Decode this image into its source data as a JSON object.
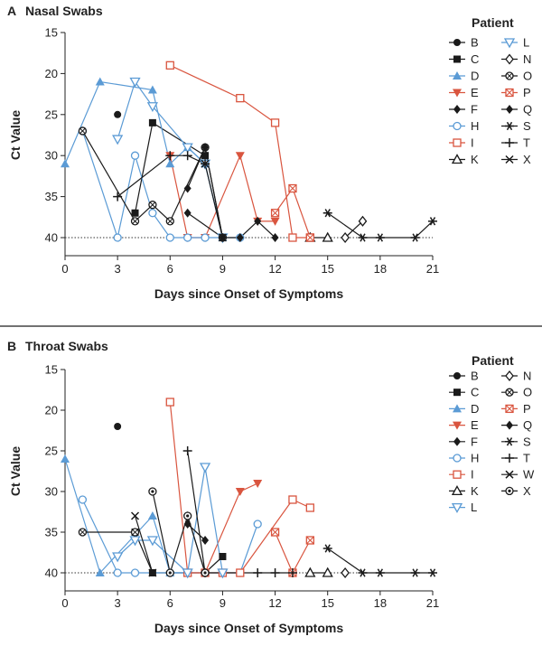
{
  "colors": {
    "black": "#1a1a1a",
    "blue": "#5b9bd5",
    "red": "#d9553f",
    "separator": "#444444"
  },
  "chart_data": [
    {
      "type": "line",
      "panel_letter": "A",
      "title": "Nasal Swabs",
      "xlabel": "Days since Onset of Symptoms",
      "ylabel": "Ct Value",
      "xlim": [
        0,
        21
      ],
      "ylim": [
        15,
        42
      ],
      "y_inverted": true,
      "x_ticks": [
        "0",
        "3",
        "6",
        "9",
        "12",
        "15",
        "18",
        "21"
      ],
      "y_ticks": [
        "15",
        "20",
        "25",
        "30",
        "35",
        "40"
      ],
      "detection_limit": 40,
      "legend_title": "Patient",
      "legend_placement": "right",
      "series": [
        {
          "name": "B",
          "color": "#1a1a1a",
          "marker": "circle-filled",
          "points": [
            [
              3,
              25
            ]
          ]
        },
        {
          "name": "C",
          "color": "#1a1a1a",
          "marker": "square-filled",
          "points": [
            [
              4,
              37
            ],
            [
              5,
              26
            ],
            [
              8,
              30
            ]
          ]
        },
        {
          "name": "D",
          "color": "#5b9bd5",
          "marker": "triangle-up-filled",
          "points": [
            [
              0,
              31
            ],
            [
              2,
              21
            ],
            [
              5,
              22
            ],
            [
              6,
              31
            ],
            [
              7,
              29
            ],
            [
              8,
              31
            ],
            [
              9,
              40
            ]
          ]
        },
        {
          "name": "E",
          "color": "#d9553f",
          "marker": "triangle-down-filled",
          "points": [
            [
              6,
              30
            ],
            [
              7,
              40
            ],
            [
              8,
              40
            ],
            [
              10,
              30
            ],
            [
              11,
              38
            ],
            [
              12,
              38
            ]
          ]
        },
        {
          "name": "F",
          "color": "#1a1a1a",
          "marker": "diamond-filled",
          "points": [
            [
              7,
              37
            ],
            [
              9,
              40
            ]
          ]
        },
        {
          "name": "H",
          "color": "#5b9bd5",
          "marker": "circle-open",
          "points": [
            [
              1,
              27
            ],
            [
              3,
              40
            ],
            [
              4,
              30
            ],
            [
              5,
              37
            ],
            [
              6,
              40
            ],
            [
              7,
              40
            ],
            [
              8,
              40
            ],
            [
              10,
              40
            ]
          ]
        },
        {
          "name": "I",
          "color": "#d9553f",
          "marker": "square-open",
          "points": [
            [
              6,
              19
            ],
            [
              10,
              23
            ],
            [
              12,
              26
            ],
            [
              13,
              40
            ],
            [
              14,
              40
            ]
          ]
        },
        {
          "name": "K",
          "color": "#1a1a1a",
          "marker": "triangle-up-open",
          "points": [
            [
              14,
              40
            ],
            [
              15,
              40
            ]
          ]
        },
        {
          "name": "L",
          "color": "#5b9bd5",
          "marker": "triangle-down-open",
          "points": [
            [
              3,
              28
            ],
            [
              4,
              21
            ],
            [
              5,
              24
            ],
            [
              7,
              29
            ],
            [
              8,
              31
            ],
            [
              9,
              40
            ]
          ]
        },
        {
          "name": "N",
          "color": "#1a1a1a",
          "marker": "diamond-open",
          "points": [
            [
              16,
              40
            ],
            [
              17,
              38
            ]
          ]
        },
        {
          "name": "O",
          "color": "#1a1a1a",
          "marker": "circle-x",
          "points": [
            [
              1,
              27
            ],
            [
              4,
              38
            ],
            [
              5,
              36
            ],
            [
              6,
              38
            ],
            [
              8,
              29
            ],
            [
              9,
              40
            ]
          ]
        },
        {
          "name": "P",
          "color": "#d9553f",
          "marker": "square-x",
          "points": [
            [
              12,
              37
            ],
            [
              13,
              34
            ],
            [
              14,
              40
            ]
          ]
        },
        {
          "name": "Q",
          "color": "#1a1a1a",
          "marker": "diamond-filled",
          "points": [
            [
              7,
              34
            ],
            [
              8,
              29
            ],
            [
              9,
              40
            ],
            [
              10,
              40
            ],
            [
              11,
              38
            ],
            [
              12,
              40
            ]
          ]
        },
        {
          "name": "S",
          "color": "#1a1a1a",
          "marker": "asterisk",
          "points": [
            [
              15,
              37
            ],
            [
              17,
              40
            ],
            [
              18,
              40
            ],
            [
              20,
              40
            ],
            [
              21,
              38
            ]
          ]
        },
        {
          "name": "T",
          "color": "#1a1a1a",
          "marker": "plus",
          "points": [
            [
              3,
              35
            ],
            [
              6,
              30
            ],
            [
              7,
              30
            ],
            [
              8,
              31
            ]
          ]
        },
        {
          "name": "X",
          "color": "#1a1a1a",
          "marker": "x",
          "points": [
            [
              8,
              31
            ],
            [
              9,
              40
            ]
          ]
        }
      ]
    },
    {
      "type": "line",
      "panel_letter": "B",
      "title": "Throat Swabs",
      "xlabel": "Days since Onset of Symptoms",
      "ylabel": "Ct Value",
      "xlim": [
        0,
        21
      ],
      "ylim": [
        15,
        42
      ],
      "y_inverted": true,
      "x_ticks": [
        "0",
        "3",
        "6",
        "9",
        "12",
        "15",
        "18",
        "21"
      ],
      "y_ticks": [
        "15",
        "20",
        "25",
        "30",
        "35",
        "40"
      ],
      "detection_limit": 40,
      "legend_title": "Patient",
      "legend_placement": "right",
      "series": [
        {
          "name": "B",
          "color": "#1a1a1a",
          "marker": "circle-filled",
          "points": [
            [
              3,
              22
            ]
          ]
        },
        {
          "name": "C",
          "color": "#1a1a1a",
          "marker": "square-filled",
          "points": [
            [
              4,
              35
            ],
            [
              5,
              40
            ],
            [
              8,
              40
            ],
            [
              9,
              38
            ]
          ]
        },
        {
          "name": "D",
          "color": "#5b9bd5",
          "marker": "triangle-up-filled",
          "points": [
            [
              0,
              26
            ],
            [
              2,
              40
            ],
            [
              5,
              33
            ],
            [
              6,
              40
            ],
            [
              7,
              40
            ]
          ]
        },
        {
          "name": "E",
          "color": "#d9553f",
          "marker": "triangle-down-filled",
          "points": [
            [
              8,
              40
            ],
            [
              10,
              30
            ],
            [
              11,
              29
            ]
          ]
        },
        {
          "name": "F",
          "color": "#1a1a1a",
          "marker": "diamond-filled",
          "points": [
            [
              7,
              33
            ],
            [
              8,
              40
            ]
          ]
        },
        {
          "name": "H",
          "color": "#5b9bd5",
          "marker": "circle-open",
          "points": [
            [
              1,
              31
            ],
            [
              3,
              40
            ],
            [
              4,
              40
            ],
            [
              6,
              40
            ],
            [
              7,
              40
            ],
            [
              8,
              40
            ],
            [
              10,
              40
            ],
            [
              11,
              34
            ]
          ]
        },
        {
          "name": "I",
          "color": "#d9553f",
          "marker": "square-open",
          "points": [
            [
              6,
              19
            ],
            [
              7,
              40
            ],
            [
              8,
              40
            ],
            [
              9,
              40
            ],
            [
              10,
              40
            ],
            [
              13,
              31
            ],
            [
              14,
              32
            ]
          ]
        },
        {
          "name": "K",
          "color": "#1a1a1a",
          "marker": "triangle-up-open",
          "points": [
            [
              14,
              40
            ],
            [
              15,
              40
            ]
          ]
        },
        {
          "name": "L",
          "color": "#5b9bd5",
          "marker": "triangle-down-open",
          "points": [
            [
              3,
              38
            ],
            [
              4,
              36
            ],
            [
              5,
              36
            ],
            [
              7,
              40
            ],
            [
              8,
              27
            ],
            [
              9,
              40
            ]
          ]
        },
        {
          "name": "N",
          "color": "#1a1a1a",
          "marker": "diamond-open",
          "points": [
            [
              16,
              40
            ]
          ]
        },
        {
          "name": "O",
          "color": "#1a1a1a",
          "marker": "circle-x",
          "points": [
            [
              1,
              35
            ],
            [
              4,
              35
            ]
          ]
        },
        {
          "name": "P",
          "color": "#d9553f",
          "marker": "square-x",
          "points": [
            [
              12,
              35
            ],
            [
              13,
              40
            ],
            [
              14,
              36
            ]
          ]
        },
        {
          "name": "Q",
          "color": "#1a1a1a",
          "marker": "diamond-filled",
          "points": [
            [
              7,
              34
            ],
            [
              8,
              36
            ]
          ]
        },
        {
          "name": "S",
          "color": "#1a1a1a",
          "marker": "asterisk",
          "points": [
            [
              15,
              37
            ],
            [
              17,
              40
            ],
            [
              18,
              40
            ],
            [
              20,
              40
            ],
            [
              21,
              40
            ]
          ]
        },
        {
          "name": "T",
          "color": "#1a1a1a",
          "marker": "plus",
          "points": [
            [
              7,
              25
            ],
            [
              8,
              40
            ],
            [
              11,
              40
            ],
            [
              12,
              40
            ],
            [
              13,
              40
            ]
          ]
        },
        {
          "name": "W",
          "color": "#1a1a1a",
          "marker": "x",
          "points": [
            [
              4,
              33
            ],
            [
              5,
              40
            ]
          ]
        },
        {
          "name": "X",
          "color": "#1a1a1a",
          "marker": "circle-dot",
          "points": [
            [
              5,
              30
            ],
            [
              6,
              40
            ],
            [
              7,
              33
            ],
            [
              8,
              40
            ]
          ]
        }
      ]
    }
  ]
}
